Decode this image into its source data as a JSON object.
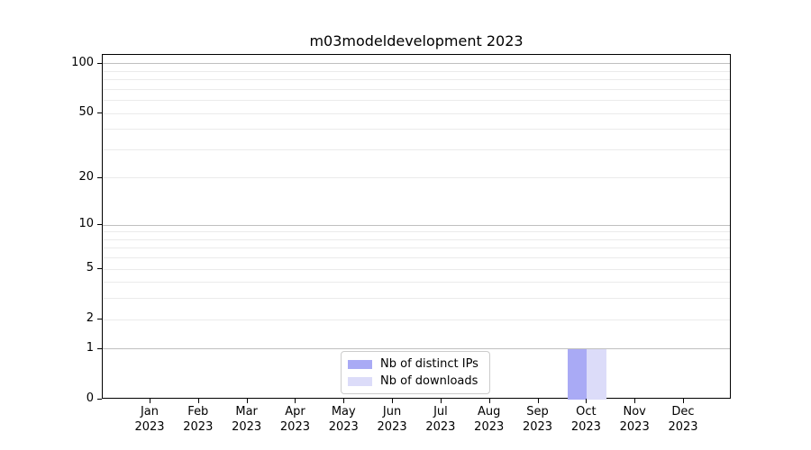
{
  "chart_data": {
    "type": "bar",
    "title": "m03modeldevelopment 2023",
    "xlabel": "",
    "ylabel": "",
    "yscale": "log1p",
    "ylim": [
      0,
      113
    ],
    "grid": true,
    "legend_position": "lower center",
    "categories": [
      {
        "line1": "Jan",
        "line2": "2023"
      },
      {
        "line1": "Feb",
        "line2": "2023"
      },
      {
        "line1": "Mar",
        "line2": "2023"
      },
      {
        "line1": "Apr",
        "line2": "2023"
      },
      {
        "line1": "May",
        "line2": "2023"
      },
      {
        "line1": "Jun",
        "line2": "2023"
      },
      {
        "line1": "Jul",
        "line2": "2023"
      },
      {
        "line1": "Aug",
        "line2": "2023"
      },
      {
        "line1": "Sep",
        "line2": "2023"
      },
      {
        "line1": "Oct",
        "line2": "2023"
      },
      {
        "line1": "Nov",
        "line2": "2023"
      },
      {
        "line1": "Dec",
        "line2": "2023"
      }
    ],
    "series": [
      {
        "name": "Nb of distinct IPs",
        "color": "#a9aaf5",
        "values": [
          0,
          0,
          0,
          0,
          0,
          0,
          0,
          0,
          0,
          1,
          0,
          0
        ]
      },
      {
        "name": "Nb of downloads",
        "color": "#dcdcf9",
        "values": [
          0,
          0,
          0,
          0,
          0,
          0,
          0,
          0,
          0,
          1,
          0,
          0
        ]
      }
    ],
    "y_tick_values": [
      0,
      1,
      2,
      5,
      10,
      20,
      50,
      100
    ],
    "y_major_gridlines": [
      1,
      10,
      100
    ],
    "y_minor_gridlines": [
      2,
      3,
      4,
      5,
      6,
      7,
      8,
      9,
      20,
      30,
      40,
      50,
      60,
      70,
      80,
      90
    ],
    "colors": {
      "major_grid": "#c0c0c0",
      "minor_grid": "#ebebeb",
      "frame": "#000000",
      "legend_border": "#cccccc"
    }
  }
}
